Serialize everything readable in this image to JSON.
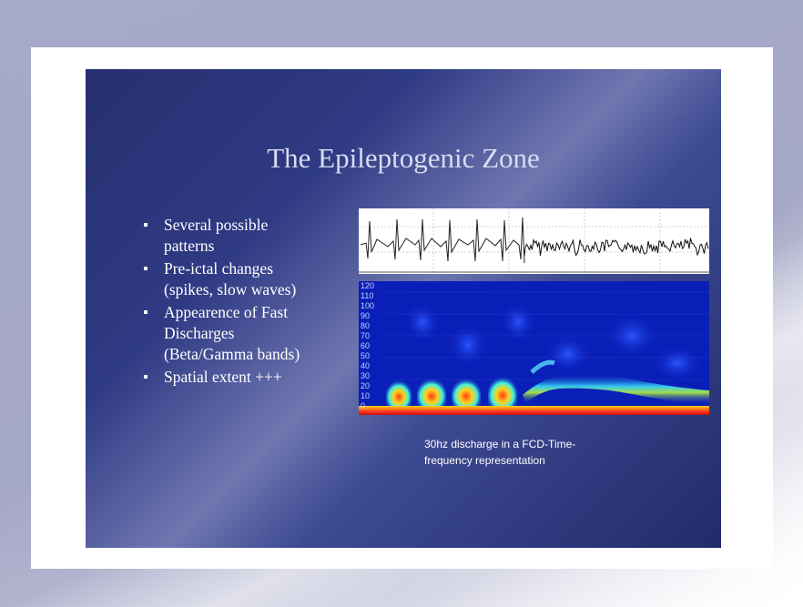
{
  "slide": {
    "title": "The Epileptogenic Zone",
    "bullets": [
      {
        "lines": [
          "Several possible",
          "patterns"
        ]
      },
      {
        "lines": [
          "Pre-ictal changes",
          "(spikes, slow waves)"
        ]
      },
      {
        "lines": [
          "Appearence of Fast",
          "Discharges",
          "(Beta/Gamma bands)"
        ]
      },
      {
        "lines": [
          "Spatial extent +++"
        ]
      }
    ],
    "spectrogram": {
      "y_ticks": [
        "120",
        "110",
        "100",
        "90",
        "80",
        "70",
        "60",
        "50",
        "40",
        "30",
        "20",
        "10",
        "0"
      ]
    },
    "caption": [
      "30hz discharge in a FCD-Time-",
      "frequency representation"
    ]
  },
  "colors": {
    "slide_dark": "#26306f",
    "slide_light": "#6f77b0",
    "title_text": "#d7dcf0",
    "spectrogram_bg": "#0a1fb8",
    "spectrogram_hot": "#ff3a1a"
  }
}
